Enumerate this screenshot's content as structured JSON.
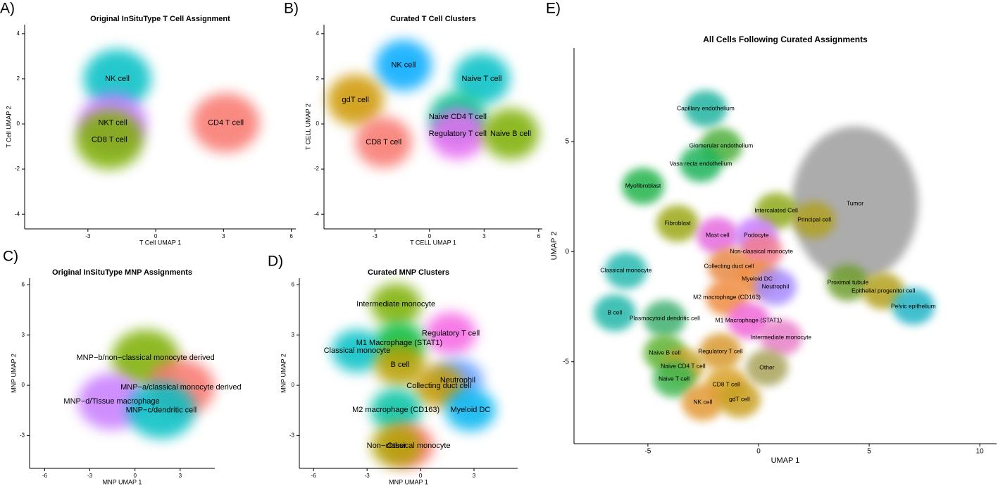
{
  "chart_data": [
    {
      "type": "scatter",
      "panel": "A)",
      "title": "Original InSituType T Cell Assignment",
      "xlabel": "T Cell UMAP 1",
      "ylabel": "T Cell UMAP 2",
      "xlim": [
        -5.8,
        6.2
      ],
      "ylim": [
        -4.65,
        4.4
      ],
      "xticks": [
        -3,
        0,
        3,
        6
      ],
      "yticks": [
        -4,
        -2,
        0,
        2,
        4
      ],
      "clusters": [
        {
          "name": "NK cell",
          "color": "#00BFC4",
          "x": -1.7,
          "y": 2.0
        },
        {
          "name": "NKT cell",
          "color": "#C77CFF",
          "x": -1.9,
          "y": 0.05
        },
        {
          "name": "CD8 T cell",
          "color": "#7CAE00",
          "x": -2.05,
          "y": -0.7
        },
        {
          "name": "CD4 T cell",
          "color": "#F8766D",
          "x": 3.1,
          "y": 0.05
        }
      ]
    },
    {
      "type": "scatter",
      "panel": "B)",
      "title": "Curated T Cell Clusters",
      "xlabel": "T CELL UMAP 1",
      "ylabel": "T CELL UMAP 2",
      "xlim": [
        -5.8,
        6.2
      ],
      "ylim": [
        -4.65,
        4.4
      ],
      "xticks": [
        -3,
        0,
        3,
        6
      ],
      "yticks": [
        -4,
        -2,
        0,
        2,
        4
      ],
      "clusters": [
        {
          "name": "NK cell",
          "color": "#00A9FF",
          "x": -1.43,
          "y": 2.6
        },
        {
          "name": "Naive T cell",
          "color": "#00BFC4",
          "x": 2.87,
          "y": 2.0
        },
        {
          "name": "gdT cell",
          "color": "#CD9600",
          "x": -4.07,
          "y": 1.06
        },
        {
          "name": "Naive CD4 T cell",
          "color": "#00C08B",
          "x": 1.55,
          "y": 0.31
        },
        {
          "name": "Regulatory T cell",
          "color": "#E76BF3",
          "x": 1.55,
          "y": -0.44
        },
        {
          "name": "Naive B cell",
          "color": "#7CAE00",
          "x": 4.46,
          "y": -0.44
        },
        {
          "name": "CD8 T cell",
          "color": "#F8766D",
          "x": -2.52,
          "y": -0.81
        }
      ]
    },
    {
      "type": "scatter",
      "panel": "C)",
      "title": "Original InSituType MNP Assignments",
      "xlabel": "MNP UMAP 1",
      "ylabel": "MNP UMAP 2",
      "xlim": [
        -7.0,
        5.3
      ],
      "ylim": [
        -4.96,
        6.4
      ],
      "xticks": [
        -6,
        -3,
        0,
        3
      ],
      "yticks": [
        -3,
        0,
        3,
        6
      ],
      "clusters": [
        {
          "name": "MNP−b/non−classical monocyte derived",
          "color": "#7CAE00",
          "x": 0.7,
          "y": 1.64
        },
        {
          "name": "MNP−a/classical monocyte derived",
          "color": "#F8766D",
          "x": 3.05,
          "y": -0.13
        },
        {
          "name": "MNP−d/Tissue macrophage",
          "color": "#C77CFF",
          "x": -1.55,
          "y": -0.97
        },
        {
          "name": "MNP−c/dendritic cell",
          "color": "#00BFC4",
          "x": 1.74,
          "y": -1.5
        }
      ]
    },
    {
      "type": "scatter",
      "panel": "D)",
      "title": "Curated MNP Clusters",
      "xlabel": "MNP UMAP 1",
      "ylabel": "MNP UMAP 2",
      "xlim": [
        -6.8,
        5.45
      ],
      "ylim": [
        -4.96,
        6.4
      ],
      "xticks": [
        -6,
        -3,
        0,
        3
      ],
      "yticks": [
        -3,
        0,
        3,
        6
      ],
      "clusters": [
        {
          "name": "Intermediate monocyte",
          "color": "#7CAE00",
          "x": -1.38,
          "y": 4.83
        },
        {
          "name": "Regulatory T cell",
          "color": "#F564E3",
          "x": 1.7,
          "y": 3.1
        },
        {
          "name": "M1 Macrophage (STAT1)",
          "color": "#00BA38",
          "x": -1.19,
          "y": 2.52
        },
        {
          "name": "Classical monocyte",
          "color": "#00BFC4",
          "x": -3.56,
          "y": 2.06
        },
        {
          "name": "B cell",
          "color": "#B79F00",
          "x": -1.15,
          "y": 1.22
        },
        {
          "name": "Neutrophil",
          "color": "#619CFF",
          "x": 2.09,
          "y": 0.29
        },
        {
          "name": "Collecting duct cell",
          "color": "#C49A00",
          "x": 1.03,
          "y": -0.04
        },
        {
          "name": "M2 macrophage (CD163)",
          "color": "#00C1A3",
          "x": -1.38,
          "y": -1.47
        },
        {
          "name": "Myeloid DC",
          "color": "#00B4F0",
          "x": 2.8,
          "y": -1.47
        },
        {
          "name": "Non−classical monocyte",
          "color": "#F8766D",
          "x": -0.67,
          "y": -3.61
        },
        {
          "name": "Other",
          "color": "#AEA200",
          "x": -1.34,
          "y": -3.61
        }
      ]
    },
    {
      "type": "scatter",
      "panel": "E)",
      "title": "All Cells Following Curated Assignments",
      "xlabel": "UMAP 1",
      "ylabel": "UMAP 2",
      "xlim": [
        -8.34,
        10.76
      ],
      "ylim": [
        -8.72,
        9.25
      ],
      "xticks": [
        -5,
        0,
        5,
        10
      ],
      "yticks": [
        -5,
        0,
        5
      ],
      "clusters": [
        {
          "name": "Tumor",
          "color": "#9E9E9E",
          "x": 4.36,
          "y": 2.17
        },
        {
          "name": "Capillary endothelium",
          "color": "#22B3A0",
          "x": -2.39,
          "y": 6.49
        },
        {
          "name": "Glomerular endothelium",
          "color": "#4DAF3A",
          "x": -1.69,
          "y": 4.79
        },
        {
          "name": "Vasa recta endothelium",
          "color": "#1FB35A",
          "x": -2.61,
          "y": 3.99
        },
        {
          "name": "Myofibroblast",
          "color": "#24B34B",
          "x": -5.22,
          "y": 2.97
        },
        {
          "name": "Intercalated Cell",
          "color": "#8FAA1E",
          "x": 0.8,
          "y": 1.85
        },
        {
          "name": "Principal cell",
          "color": "#B0A020",
          "x": 2.52,
          "y": 1.44
        },
        {
          "name": "Fibroblast",
          "color": "#9BA812",
          "x": -3.66,
          "y": 1.28
        },
        {
          "name": "Mast cell",
          "color": "#E46BDE",
          "x": -1.85,
          "y": 0.73
        },
        {
          "name": "Podocyte",
          "color": "#C77CFF",
          "x": -0.1,
          "y": 0.73
        },
        {
          "name": "Non-classical monocyte",
          "color": "#F27D8E",
          "x": 0.13,
          "y": 0.0
        },
        {
          "name": "Collecting duct cell",
          "color": "#E88A45",
          "x": -1.34,
          "y": -0.67
        },
        {
          "name": "Classical monocyte",
          "color": "#27B9B0",
          "x": -5.99,
          "y": -0.86
        },
        {
          "name": "Myeloid DC",
          "color": "#EE8A3C",
          "x": -0.06,
          "y": -1.25
        },
        {
          "name": "Proximal tubule",
          "color": "#6F9E2E",
          "x": 4.04,
          "y": -1.41
        },
        {
          "name": "Neutrophil",
          "color": "#A58AFF",
          "x": 0.76,
          "y": -1.6
        },
        {
          "name": "Epithelial progenitor cell",
          "color": "#B2A01A",
          "x": 5.64,
          "y": -1.79
        },
        {
          "name": "M2 macrophage (CD163)",
          "color": "#F08C40",
          "x": -1.43,
          "y": -2.08
        },
        {
          "name": "Pelvic epithelium",
          "color": "#21B4C6",
          "x": 7.0,
          "y": -2.49
        },
        {
          "name": "B cell",
          "color": "#23B7A8",
          "x": -6.5,
          "y": -2.78
        },
        {
          "name": "Plasmacytoid dendritic cell",
          "color": "#3FB070",
          "x": -4.24,
          "y": -3.04
        },
        {
          "name": "M1 Macrophage (STAT1)",
          "color": "#F067D8",
          "x": -0.45,
          "y": -3.13
        },
        {
          "name": "Intermediate monocyte",
          "color": "#E880C8",
          "x": 1.02,
          "y": -3.9
        },
        {
          "name": "Naive B cell",
          "color": "#5DB233",
          "x": -4.24,
          "y": -4.6
        },
        {
          "name": "Regulatory T cell",
          "color": "#D99A30",
          "x": -1.72,
          "y": -4.54
        },
        {
          "name": "Naive CD4 T cell",
          "color": "#C5A226",
          "x": -3.41,
          "y": -5.21
        },
        {
          "name": "Other",
          "color": "#A9A35A",
          "x": 0.38,
          "y": -5.27
        },
        {
          "name": "Naive T cell",
          "color": "#3DB64F",
          "x": -3.82,
          "y": -5.78
        },
        {
          "name": "CD8 T cell",
          "color": "#D8A32A",
          "x": -1.46,
          "y": -6.04
        },
        {
          "name": "NK cell",
          "color": "#E29A36",
          "x": -2.52,
          "y": -6.84
        },
        {
          "name": "gdT cell",
          "color": "#C9A020",
          "x": -0.86,
          "y": -6.71
        }
      ]
    }
  ]
}
